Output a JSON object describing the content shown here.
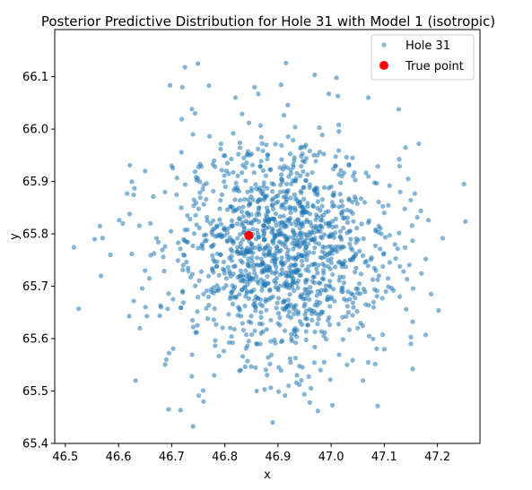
{
  "chart_data": {
    "type": "scatter",
    "title": "Posterior Predictive Distribution for Hole 31 with Model 1 (isotropic)",
    "xlabel": "x",
    "ylabel": "y",
    "xlim": [
      46.48,
      47.28
    ],
    "ylim": [
      65.4,
      66.19
    ],
    "xticks": [
      "46.5",
      "46.6",
      "46.7",
      "46.8",
      "46.9",
      "47.0",
      "47.1",
      "47.2"
    ],
    "yticks": [
      "65.4",
      "65.5",
      "65.6",
      "65.7",
      "65.8",
      "65.9",
      "66.0",
      "66.1"
    ],
    "grid": false,
    "legend": {
      "placement": "upper right",
      "entries": [
        "Hole 31",
        "True point"
      ]
    },
    "series": [
      {
        "name": "Hole 31",
        "kind": "samples",
        "color": "#1f77b4",
        "count_note": "dense isotropic cloud of posterior samples",
        "center": [
          46.905,
          65.775
        ],
        "spread": [
          0.105,
          0.105
        ],
        "values": [
          [
            46.525,
            65.657
          ],
          [
            46.555,
            65.79
          ],
          [
            46.565,
            65.815
          ],
          [
            46.567,
            65.72
          ],
          [
            46.57,
            65.792
          ],
          [
            46.585,
            65.76
          ],
          [
            46.608,
            65.82
          ],
          [
            46.63,
            65.887
          ],
          [
            46.632,
            65.52
          ],
          [
            46.62,
            65.643
          ],
          [
            46.64,
            65.62
          ],
          [
            46.65,
            65.92
          ],
          [
            46.65,
            65.73
          ],
          [
            46.658,
            65.715
          ],
          [
            46.69,
            65.56
          ],
          [
            46.694,
            65.465
          ],
          [
            46.72,
            66.08
          ],
          [
            46.725,
            66.118
          ],
          [
            46.738,
            65.528
          ],
          [
            46.744,
            66.03
          ],
          [
            46.77,
            66.083
          ],
          [
            46.76,
            65.48
          ],
          [
            46.82,
            66.06
          ],
          [
            46.856,
            66.08
          ],
          [
            46.89,
            65.44
          ],
          [
            46.915,
            66.126
          ],
          [
            46.96,
            65.478
          ],
          [
            46.975,
            65.462
          ],
          [
            47.01,
            66.098
          ],
          [
            47.06,
            65.52
          ],
          [
            47.07,
            66.06
          ],
          [
            47.1,
            65.58
          ],
          [
            47.14,
            65.965
          ],
          [
            47.145,
            65.905
          ],
          [
            47.15,
            65.603
          ],
          [
            47.165,
            65.972
          ],
          [
            47.178,
            65.752
          ],
          [
            47.188,
            65.685
          ],
          [
            47.25,
            65.895
          ],
          [
            47.15,
            65.59
          ],
          [
            47.12,
            65.78
          ],
          [
            47.13,
            65.88
          ],
          [
            46.66,
            65.82
          ],
          [
            46.68,
            65.66
          ],
          [
            46.7,
            65.93
          ],
          [
            46.74,
            65.99
          ],
          [
            46.78,
            65.53
          ],
          [
            46.83,
            65.54
          ],
          [
            46.86,
            65.5
          ],
          [
            46.92,
            65.51
          ],
          [
            46.98,
            65.54
          ],
          [
            47.03,
            65.55
          ],
          [
            47.05,
            65.62
          ],
          [
            47.08,
            65.66
          ],
          [
            47.09,
            65.72
          ],
          [
            47.1,
            65.84
          ]
        ]
      },
      {
        "name": "True point",
        "kind": "point",
        "color": "#ff0000",
        "values": [
          [
            46.845,
            65.797
          ]
        ]
      }
    ]
  }
}
